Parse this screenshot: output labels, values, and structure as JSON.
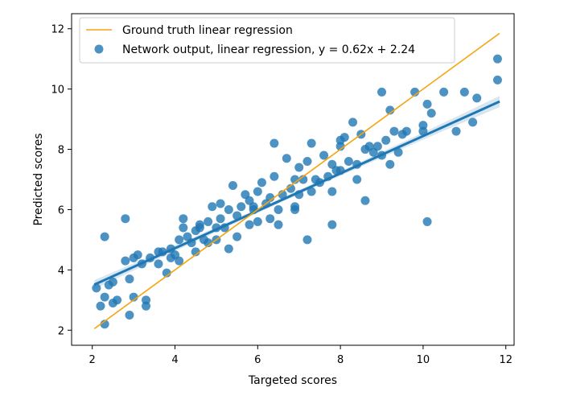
{
  "chart_data": {
    "type": "scatter",
    "title": "",
    "xlabel": "Targeted scores",
    "ylabel": "Predicted scores",
    "xlim": [
      1.5,
      12.2
    ],
    "ylim": [
      1.5,
      12.5
    ],
    "xticks": [
      2,
      4,
      6,
      8,
      10,
      12
    ],
    "yticks": [
      2,
      4,
      6,
      8,
      10,
      12
    ],
    "grid": false,
    "legend_position": "top-left",
    "series": [
      {
        "name": "Ground truth linear regression",
        "kind": "line",
        "color": "#f5a40e",
        "x": [
          2.05,
          11.85
        ],
        "y": [
          2.05,
          11.85
        ]
      },
      {
        "name": "Network output, linear regression, y = 0.62x + 2.24",
        "kind": "scatter",
        "color": "#1f77b4",
        "regression": {
          "slope": 0.62,
          "intercept": 2.24,
          "x_range": [
            2.05,
            11.85
          ]
        },
        "x": [
          2.1,
          2.2,
          2.3,
          2.3,
          2.4,
          2.5,
          2.5,
          2.6,
          2.8,
          2.9,
          2.9,
          3.0,
          3.0,
          3.1,
          3.2,
          3.3,
          3.3,
          3.4,
          3.6,
          3.7,
          3.8,
          3.9,
          3.9,
          4.0,
          4.1,
          4.1,
          4.2,
          4.3,
          4.4,
          4.5,
          4.5,
          4.6,
          4.7,
          4.8,
          4.8,
          4.9,
          5.0,
          5.0,
          5.1,
          5.1,
          5.2,
          5.3,
          5.3,
          5.4,
          5.5,
          5.5,
          5.6,
          5.7,
          5.8,
          5.8,
          5.9,
          6.0,
          6.0,
          6.1,
          6.2,
          6.3,
          6.3,
          6.4,
          6.5,
          6.5,
          6.6,
          6.7,
          6.8,
          6.9,
          6.9,
          7.0,
          7.0,
          7.1,
          7.2,
          7.3,
          7.3,
          7.4,
          7.5,
          7.6,
          7.7,
          7.8,
          7.8,
          7.9,
          8.0,
          8.0,
          8.1,
          8.2,
          8.3,
          8.4,
          8.4,
          8.5,
          8.6,
          8.7,
          8.8,
          8.9,
          9.0,
          9.0,
          9.1,
          9.2,
          9.3,
          9.4,
          9.5,
          9.6,
          9.8,
          10.0,
          10.1,
          10.2,
          10.5,
          10.8,
          11.0,
          11.2,
          11.3,
          11.8,
          11.8,
          2.3,
          2.8,
          3.6,
          4.2,
          6.4,
          6.9,
          7.8,
          8.0,
          10.0,
          10.1,
          4.6,
          5.9,
          7.2,
          8.6,
          9.2
        ],
        "y": [
          3.4,
          2.8,
          3.1,
          5.1,
          3.5,
          2.9,
          3.6,
          3.0,
          4.3,
          3.7,
          2.5,
          4.4,
          3.1,
          4.5,
          4.2,
          2.8,
          3.0,
          4.4,
          4.2,
          4.6,
          3.9,
          4.7,
          4.4,
          4.5,
          5.0,
          4.3,
          5.7,
          5.1,
          4.9,
          5.3,
          4.6,
          5.5,
          5.0,
          4.9,
          5.6,
          6.1,
          5.0,
          5.4,
          5.7,
          6.2,
          5.4,
          6.0,
          4.7,
          6.8,
          5.8,
          5.1,
          6.1,
          6.5,
          6.3,
          5.5,
          6.0,
          6.6,
          5.6,
          6.9,
          6.2,
          6.4,
          5.7,
          7.1,
          6.0,
          5.5,
          6.5,
          7.7,
          6.7,
          6.1,
          7.0,
          7.4,
          6.5,
          7.0,
          7.6,
          6.6,
          8.2,
          7.0,
          6.9,
          7.8,
          7.1,
          7.5,
          6.6,
          7.3,
          8.1,
          7.3,
          8.4,
          7.6,
          8.9,
          7.5,
          7.0,
          8.5,
          8.0,
          8.1,
          7.9,
          8.1,
          9.9,
          7.8,
          8.3,
          9.3,
          8.6,
          7.9,
          8.5,
          8.6,
          9.9,
          8.8,
          9.5,
          9.2,
          9.9,
          8.6,
          9.9,
          8.9,
          9.7,
          10.3,
          11.0,
          2.2,
          5.7,
          4.6,
          5.4,
          8.2,
          6.0,
          5.5,
          8.3,
          8.6,
          5.6,
          5.4,
          6.1,
          5.0,
          6.3,
          7.5
        ]
      }
    ]
  }
}
